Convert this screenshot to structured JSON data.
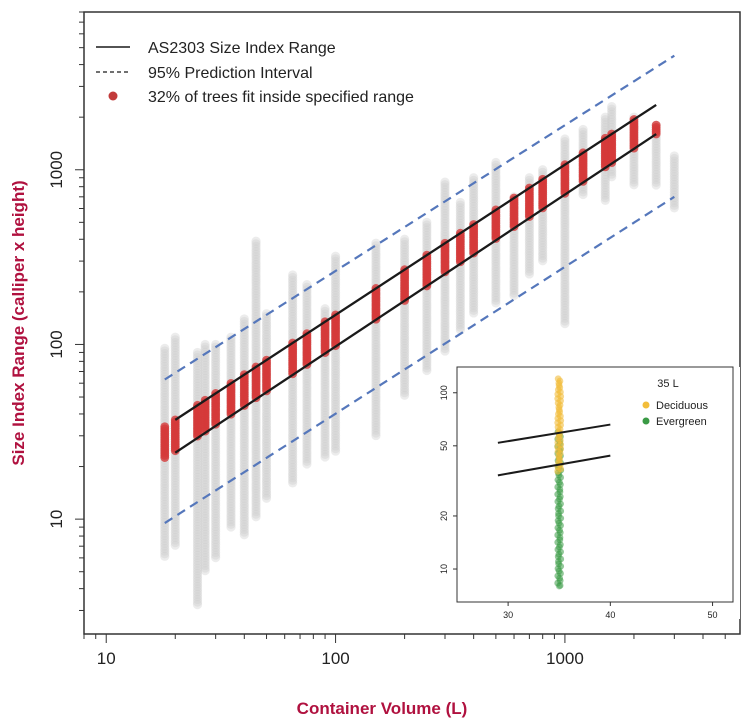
{
  "chart_data": {
    "type": "scatter",
    "x_scale": "log",
    "y_scale": "log",
    "xlabel": "Container Volume (L)",
    "ylabel": "Size Index Range (calliper x height)",
    "xlim": [
      8,
      5800
    ],
    "ylim": [
      2.2,
      8000
    ],
    "x_ticks": [
      {
        "value": 10,
        "label": "10"
      },
      {
        "value": 100,
        "label": "100"
      },
      {
        "value": 1000,
        "label": "1000"
      }
    ],
    "y_ticks": [
      {
        "value": 10,
        "label": "10"
      },
      {
        "value": 100,
        "label": "100"
      },
      {
        "value": 1000,
        "label": "1000"
      }
    ],
    "legend": {
      "position": "top-left",
      "entries": [
        {
          "style": "solid-line",
          "label": "AS2303 Size Index Range"
        },
        {
          "style": "dashed-line",
          "label": "95% Prediction Interval"
        },
        {
          "style": "red-point",
          "label": "32% of trees fit inside specified range"
        }
      ]
    },
    "colors": {
      "in_range": "#d43a3a",
      "out_of_range": "#cccccc",
      "range_line": "#1a1a1a",
      "prediction_line": "#5577bb",
      "axis_title": "#b0113f"
    },
    "range_lines": {
      "upper": {
        "x": [
          20,
          2500
        ],
        "y": [
          37,
          2350
        ]
      },
      "lower": {
        "x": [
          20,
          2500
        ],
        "y": [
          24,
          1600
        ]
      }
    },
    "prediction_lines": {
      "upper": {
        "x": [
          18,
          3000
        ],
        "y": [
          63,
          4500
        ]
      },
      "lower": {
        "x": [
          18,
          3000
        ],
        "y": [
          9.5,
          700
        ]
      }
    },
    "containers": [
      {
        "x": 18,
        "min": 6,
        "max": 95
      },
      {
        "x": 20,
        "min": 7,
        "max": 110
      },
      {
        "x": 25,
        "min": 3.2,
        "max": 90
      },
      {
        "x": 27,
        "min": 5,
        "max": 100
      },
      {
        "x": 30,
        "min": 6,
        "max": 100
      },
      {
        "x": 35,
        "min": 9,
        "max": 110
      },
      {
        "x": 40,
        "min": 8,
        "max": 140
      },
      {
        "x": 45,
        "min": 10,
        "max": 390
      },
      {
        "x": 50,
        "min": 13,
        "max": 150
      },
      {
        "x": 65,
        "min": 16,
        "max": 250
      },
      {
        "x": 75,
        "min": 20,
        "max": 220
      },
      {
        "x": 90,
        "min": 22,
        "max": 160
      },
      {
        "x": 100,
        "min": 24,
        "max": 320
      },
      {
        "x": 150,
        "min": 30,
        "max": 380
      },
      {
        "x": 200,
        "min": 50,
        "max": 400
      },
      {
        "x": 250,
        "min": 70,
        "max": 500
      },
      {
        "x": 300,
        "min": 90,
        "max": 850
      },
      {
        "x": 350,
        "min": 120,
        "max": 650
      },
      {
        "x": 400,
        "min": 150,
        "max": 900
      },
      {
        "x": 500,
        "min": 170,
        "max": 1100
      },
      {
        "x": 600,
        "min": 190,
        "max": 700
      },
      {
        "x": 700,
        "min": 250,
        "max": 900
      },
      {
        "x": 800,
        "min": 300,
        "max": 1000
      },
      {
        "x": 1000,
        "min": 130,
        "max": 1500
      },
      {
        "x": 1200,
        "min": 700,
        "max": 1700
      },
      {
        "x": 1500,
        "min": 650,
        "max": 2000
      },
      {
        "x": 1600,
        "min": 900,
        "max": 2300
      },
      {
        "x": 2000,
        "min": 800,
        "max": 2000
      },
      {
        "x": 2500,
        "min": 800,
        "max": 1800
      },
      {
        "x": 3000,
        "min": 600,
        "max": 1200
      }
    ],
    "inset": {
      "title": "35 L",
      "x_scale": "linear",
      "y_scale": "log",
      "xlim": [
        25,
        52
      ],
      "ylim": [
        6.5,
        140
      ],
      "x_ticks": [
        30,
        40,
        50
      ],
      "y_ticks": [
        10,
        20,
        50,
        100
      ],
      "legend": [
        {
          "label": "Deciduous",
          "color": "#f2bd3a"
        },
        {
          "label": "Evergreen",
          "color": "#3a9a45"
        }
      ],
      "range_lines": {
        "upper": {
          "x": [
            29,
            40
          ],
          "y": [
            52,
            66
          ]
        },
        "lower": {
          "x": [
            29,
            40
          ],
          "y": [
            34,
            44
          ]
        }
      },
      "points_x": 35,
      "deciduous_range": [
        35,
        120
      ],
      "evergreen_range": [
        8,
        60
      ]
    }
  }
}
